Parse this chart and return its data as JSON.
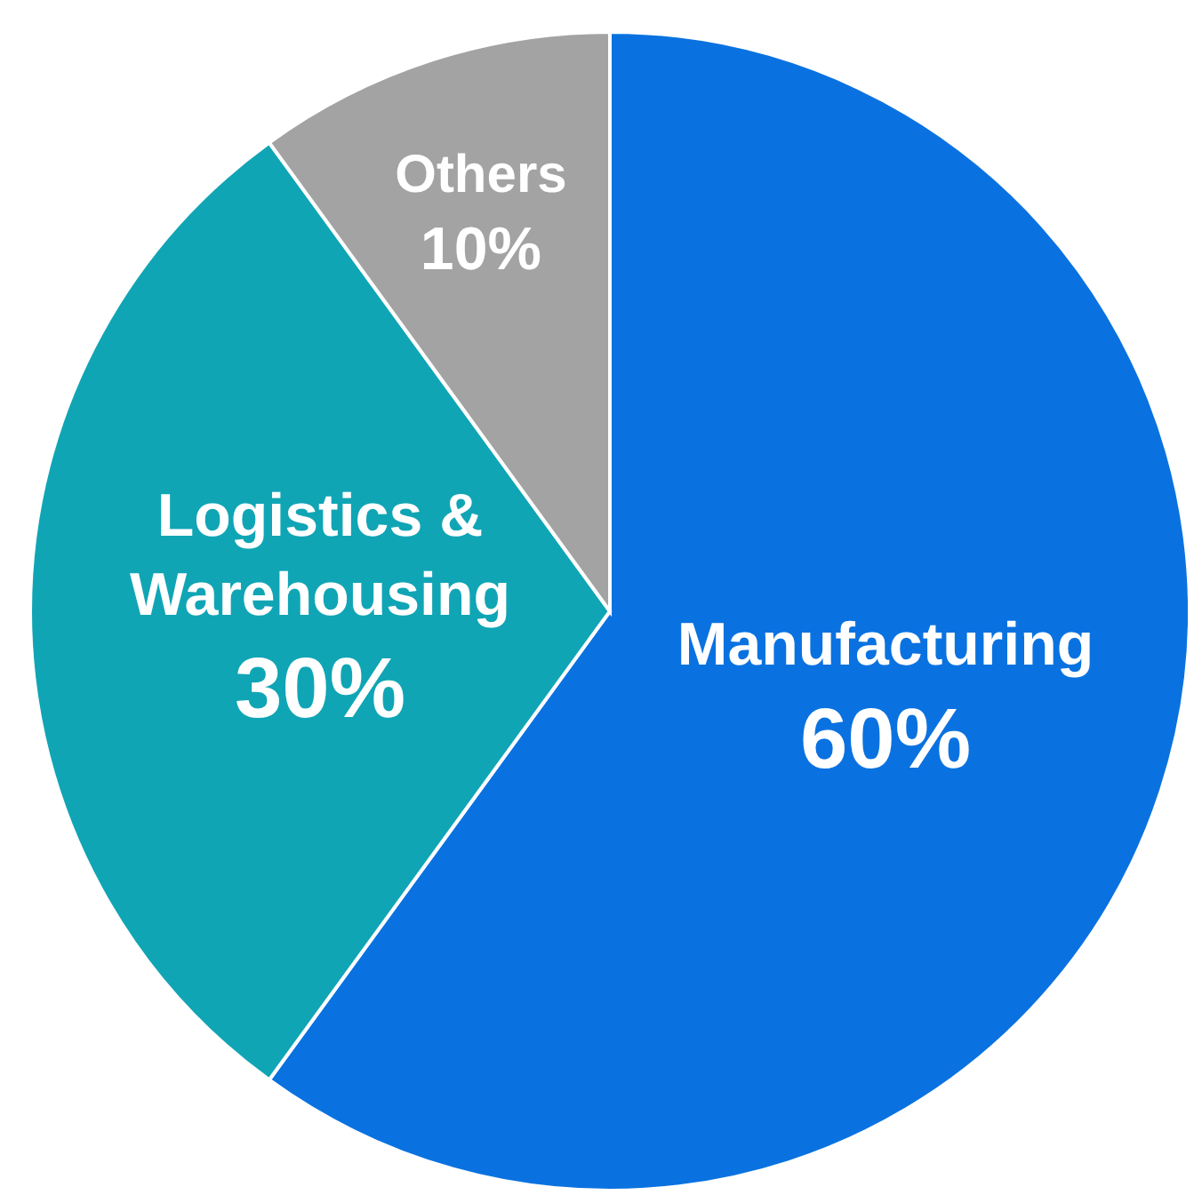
{
  "chart_data": {
    "type": "pie",
    "categories": [
      "Manufacturing",
      "Logistics & Warehousing",
      "Others"
    ],
    "values": [
      60,
      30,
      10
    ],
    "value_labels": [
      "60%",
      "30%",
      "10%"
    ],
    "colors": [
      "#0a72e0",
      "#10a5b5",
      "#a3a3a3"
    ]
  }
}
